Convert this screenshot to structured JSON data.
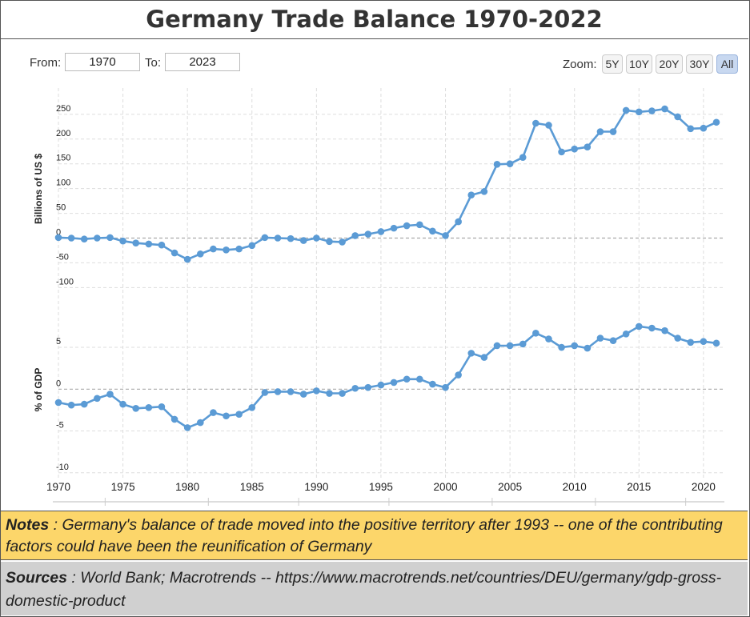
{
  "title": "Germany Trade Balance 1970-2022",
  "range": {
    "from_label": "From:",
    "from_value": "1970",
    "to_label": "To:",
    "to_value": "2023"
  },
  "zoom": {
    "label": "Zoom:",
    "buttons": [
      "5Y",
      "10Y",
      "20Y",
      "30Y",
      "All"
    ],
    "active": "All"
  },
  "colors": {
    "series": "#5b9bd5",
    "grid": "#dddddd",
    "zero_line": "#aaaaaa",
    "notes_bg": "#fcd66a",
    "sources_bg": "#d0d0d0"
  },
  "chart_data": [
    {
      "type": "line",
      "ylabel": "Billions of US $",
      "yticks": [
        250,
        200,
        150,
        100,
        50,
        0,
        -50,
        -100
      ],
      "ylim": [
        -105,
        275
      ],
      "grid": true,
      "x": [
        1970,
        1971,
        1972,
        1973,
        1974,
        1975,
        1976,
        1977,
        1978,
        1979,
        1980,
        1981,
        1982,
        1983,
        1984,
        1985,
        1986,
        1987,
        1988,
        1989,
        1990,
        1991,
        1992,
        1993,
        1994,
        1995,
        1996,
        1997,
        1998,
        1999,
        2000,
        2001,
        2002,
        2003,
        2004,
        2005,
        2006,
        2007,
        2008,
        2009,
        2010,
        2011,
        2012,
        2013,
        2014,
        2015,
        2016,
        2017,
        2018,
        2019,
        2020,
        2021
      ],
      "values": [
        1,
        0,
        -2,
        0,
        1,
        -6,
        -10,
        -12,
        -14,
        -30,
        -43,
        -32,
        -22,
        -24,
        -22,
        -15,
        1,
        0,
        -1,
        -5,
        0,
        -7,
        -8,
        5,
        8,
        13,
        20,
        25,
        27,
        14,
        5,
        33,
        87,
        94,
        149,
        150,
        163,
        232,
        228,
        174,
        180,
        184,
        215,
        215,
        258,
        255,
        257,
        261,
        245,
        221,
        222,
        234
      ]
    },
    {
      "type": "line",
      "ylabel": "% of GDP",
      "yticks": [
        5,
        0,
        -5,
        -10
      ],
      "ylim": [
        -10,
        10
      ],
      "grid": true,
      "x": [
        1970,
        1971,
        1972,
        1973,
        1974,
        1975,
        1976,
        1977,
        1978,
        1979,
        1980,
        1981,
        1982,
        1983,
        1984,
        1985,
        1986,
        1987,
        1988,
        1989,
        1990,
        1991,
        1992,
        1993,
        1994,
        1995,
        1996,
        1997,
        1998,
        1999,
        2000,
        2001,
        2002,
        2003,
        2004,
        2005,
        2006,
        2007,
        2008,
        2009,
        2010,
        2011,
        2012,
        2013,
        2014,
        2015,
        2016,
        2017,
        2018,
        2019,
        2020,
        2021
      ],
      "values": [
        -1.6,
        -1.9,
        -1.8,
        -1.1,
        -0.6,
        -1.8,
        -2.3,
        -2.2,
        -2.1,
        -3.6,
        -4.6,
        -4.0,
        -2.8,
        -3.2,
        -3.0,
        -2.2,
        -0.4,
        -0.3,
        -0.3,
        -0.6,
        -0.2,
        -0.5,
        -0.5,
        0.1,
        0.2,
        0.5,
        0.8,
        1.2,
        1.2,
        0.6,
        0.2,
        1.7,
        4.3,
        3.8,
        5.2,
        5.2,
        5.4,
        6.7,
        6.0,
        5.0,
        5.2,
        4.9,
        6.1,
        5.8,
        6.6,
        7.5,
        7.3,
        7.0,
        6.1,
        5.6,
        5.7,
        5.5
      ]
    }
  ],
  "xaxis": {
    "ticks": [
      1970,
      1975,
      1980,
      1985,
      1990,
      1995,
      2000,
      2005,
      2010,
      2015,
      2020
    ]
  },
  "notes": {
    "label": "Notes",
    "text": " : Germany's balance of trade moved into the positive territory after 1993 -- one of the contributing factors could have been the reunification of Germany"
  },
  "sources": {
    "label": "Sources",
    "text": " : World Bank; Macrotrends -- https://www.macrotrends.net/countries/DEU/germany/gdp-gross-domestic-product"
  }
}
